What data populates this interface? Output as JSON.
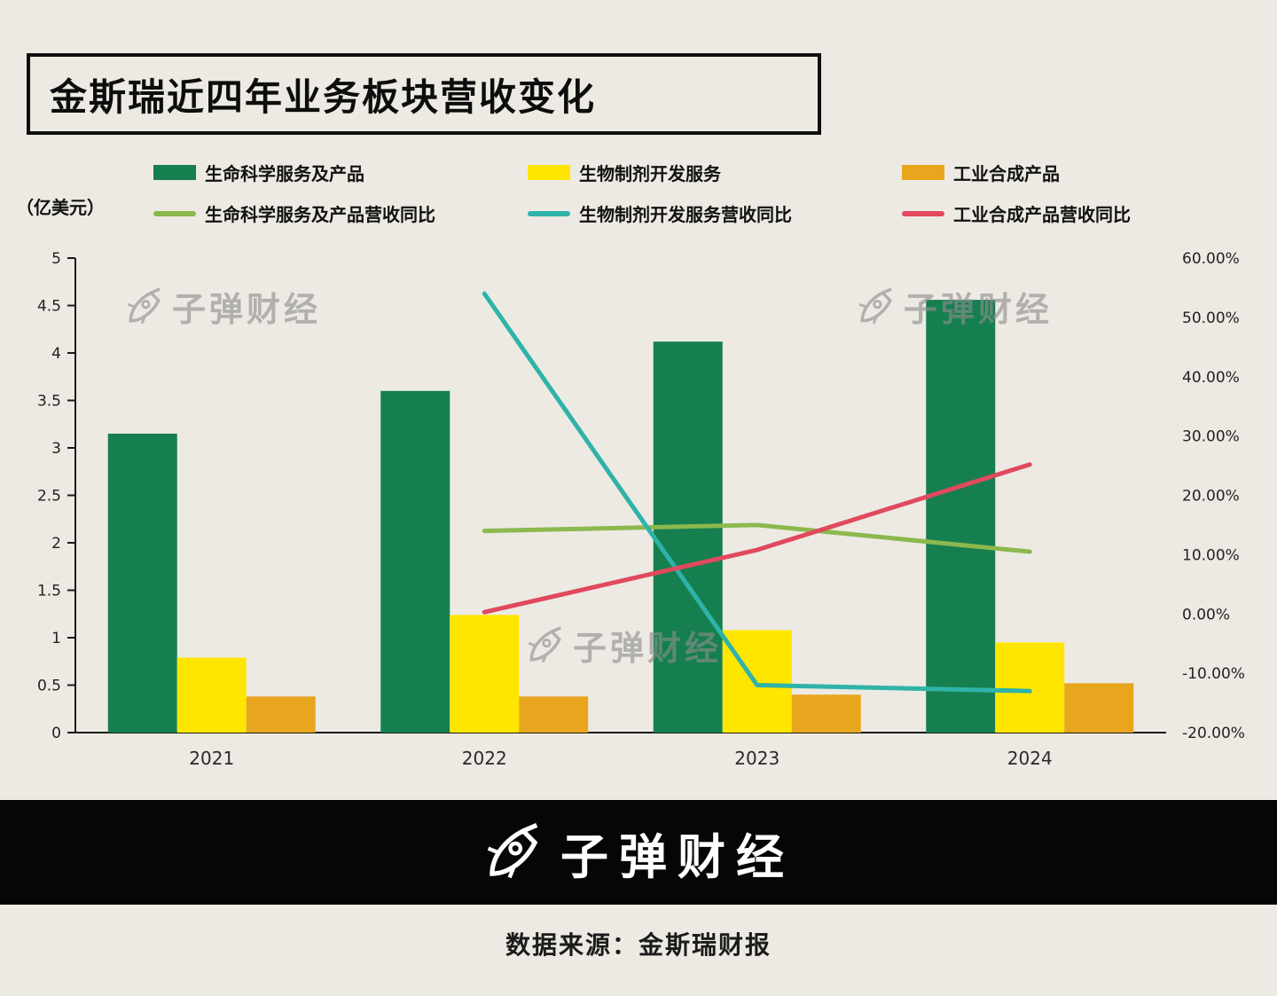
{
  "title": "金斯瑞近四年业务板块营收变化",
  "unit_label": "（亿美元）",
  "watermark_text": "子弹财经",
  "footer": {
    "logo_text": "子弹财经",
    "source_text": "数据来源：金斯瑞财报"
  },
  "colors": {
    "background": "#edeae3",
    "bar_green": "#157f4f",
    "bar_yellow": "#ffe600",
    "bar_orange": "#e8a51e",
    "line_green": "#8cb84e",
    "line_teal": "#2fb3a9",
    "line_red": "#e0495e",
    "axis": "#1a1a1a"
  },
  "legend": [
    {
      "label": "生命科学服务及产品",
      "swatch": "bar",
      "color": "#157f4f"
    },
    {
      "label": "生物制剂开发服务",
      "swatch": "bar",
      "color": "#ffe600"
    },
    {
      "label": "工业合成产品",
      "swatch": "bar",
      "color": "#e8a51e"
    },
    {
      "label": "生命科学服务及产品营收同比",
      "swatch": "line",
      "color": "#8cb84e"
    },
    {
      "label": "生物制剂开发服务营收同比",
      "swatch": "line",
      "color": "#2fb3a9"
    },
    {
      "label": "工业合成产品营收同比",
      "swatch": "line",
      "color": "#e0495e"
    }
  ],
  "chart_data": {
    "type": "bar+line",
    "title": "金斯瑞近四年业务板块营收变化",
    "categories": [
      "2021",
      "2022",
      "2023",
      "2024"
    ],
    "bar_series": [
      {
        "name": "生命科学服务及产品",
        "color": "#157f4f",
        "axis": "left",
        "values": [
          3.15,
          3.6,
          4.12,
          4.56
        ]
      },
      {
        "name": "生物制剂开发服务",
        "color": "#ffe600",
        "axis": "left",
        "values": [
          0.79,
          1.24,
          1.08,
          0.95
        ]
      },
      {
        "name": "工业合成产品",
        "color": "#e8a51e",
        "axis": "left",
        "values": [
          0.38,
          0.38,
          0.4,
          0.52
        ]
      }
    ],
    "line_series": [
      {
        "name": "生命科学服务及产品营收同比",
        "color": "#8cb84e",
        "axis": "right",
        "values": [
          null,
          14,
          15,
          10.5
        ]
      },
      {
        "name": "生物制剂开发服务营收同比",
        "color": "#2fb3a9",
        "axis": "right",
        "values": [
          null,
          54,
          -12,
          -13
        ]
      },
      {
        "name": "工业合成产品营收同比",
        "color": "#e0495e",
        "axis": "right",
        "values": [
          null,
          0.3,
          10.8,
          25.2
        ]
      }
    ],
    "left_axis": {
      "label": "（亿美元）",
      "min": 0,
      "max": 5,
      "step": 0.5,
      "ticks": [
        "0",
        "0.5",
        "1",
        "1.5",
        "2",
        "2.5",
        "3",
        "3.5",
        "4",
        "4.5",
        "5"
      ]
    },
    "right_axis": {
      "min": -20,
      "max": 60,
      "step": 10,
      "ticks": [
        "-20.00%",
        "-10.00%",
        "0.00%",
        "10.00%",
        "20.00%",
        "30.00%",
        "40.00%",
        "50.00%",
        "60.00%"
      ]
    },
    "grid": false,
    "legend_position": "top"
  }
}
